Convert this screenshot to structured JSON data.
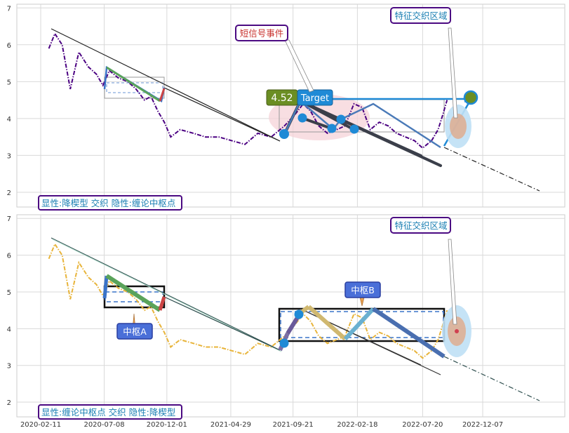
{
  "chart_data": [
    {
      "type": "line",
      "panel": "top",
      "ylim": [
        1.6,
        7.1
      ],
      "y_ticks": [
        "2",
        "3",
        "4",
        "5",
        "6",
        "7"
      ],
      "grid": true,
      "series": [
        {
          "name": "",
          "color": "#4b0082",
          "style": "dashdot",
          "x": [
            "2020-03-01",
            "2020-03-15",
            "2020-04-01",
            "2020-04-20",
            "2020-05-10",
            "2020-06-01",
            "2020-06-20",
            "2020-07-05",
            "2020-07-20",
            "2020-08-10",
            "2020-09-01",
            "2020-09-20",
            "2020-10-10",
            "2020-10-25",
            "2020-11-10",
            "2020-11-25",
            "2020-12-10",
            "2021-01-01",
            "2021-02-01",
            "2021-03-01",
            "2021-04-01",
            "2021-05-01",
            "2021-06-01",
            "2021-07-01",
            "2021-08-01",
            "2021-09-01",
            "2021-09-25",
            "2021-10-15",
            "2021-11-01",
            "2021-11-20",
            "2021-12-10",
            "2022-01-01",
            "2022-01-20",
            "2022-02-10",
            "2022-03-01",
            "2022-03-20",
            "2022-04-10",
            "2022-05-01",
            "2022-05-20",
            "2022-06-10",
            "2022-07-01",
            "2022-07-20",
            "2022-08-10",
            "2022-08-25",
            "2022-09-05",
            "2022-09-15"
          ],
          "y": [
            5.9,
            6.3,
            6.0,
            4.8,
            5.8,
            5.4,
            5.2,
            4.9,
            5.3,
            5.1,
            5.0,
            4.8,
            4.5,
            4.6,
            4.2,
            3.9,
            3.5,
            3.7,
            3.6,
            3.5,
            3.5,
            3.4,
            3.3,
            3.6,
            3.5,
            3.8,
            4.1,
            4.4,
            4.2,
            3.8,
            3.6,
            3.7,
            3.8,
            4.4,
            4.3,
            3.7,
            3.9,
            3.8,
            3.6,
            3.5,
            3.4,
            3.2,
            3.4,
            3.7,
            4.1,
            4.5
          ]
        }
      ],
      "annotations": {
        "short_signal_label": "短信号事件",
        "region_label": "特征交织区域",
        "target_value": "4.52",
        "target_label": "Target",
        "legend_text": "显性:降楔型 交织 隐性:缠论中枢点"
      },
      "wedge_lines": [
        {
          "from": [
            "2020-04-01",
            6.45
          ],
          "to": [
            "2021-09-12",
            3.3
          ]
        },
        {
          "from": [
            "2020-12-05",
            4.85
          ],
          "to": [
            "2021-09-12",
            3.3
          ]
        },
        {
          "from": [
            "2021-09-12",
            3.3
          ],
          "to": [
            "2023-05-01",
            1.9
          ],
          "style": "dashdot"
        }
      ],
      "target_points": [
        {
          "x": "2021-09-15",
          "y": 3.5
        },
        {
          "x": "2021-10-25",
          "y": 3.95
        },
        {
          "x": "2021-12-15",
          "y": 3.7
        },
        {
          "x": "2022-01-10",
          "y": 3.9
        },
        {
          "x": "2022-02-01",
          "y": 3.65
        }
      ],
      "target_point": {
        "x": "2022-10-05",
        "y": 4.52
      }
    },
    {
      "type": "line",
      "panel": "bottom",
      "ylim": [
        1.6,
        7.1
      ],
      "y_ticks": [
        "2",
        "3",
        "4",
        "5",
        "6",
        "7"
      ],
      "grid": true,
      "x_ticks": [
        "2020-02-11",
        "2020-07-08",
        "2020-12-01",
        "2021-04-29",
        "2021-09-21",
        "2022-02-18",
        "2022-07-20",
        "2022-12-07"
      ],
      "series": [
        {
          "name": "",
          "color": "#e8b43a",
          "style": "dashdot",
          "x": [
            "2020-03-01",
            "2020-03-15",
            "2020-04-01",
            "2020-04-20",
            "2020-05-10",
            "2020-06-01",
            "2020-06-20",
            "2020-07-05",
            "2020-07-20",
            "2020-08-10",
            "2020-09-01",
            "2020-09-20",
            "2020-10-10",
            "2020-10-25",
            "2020-11-10",
            "2020-11-25",
            "2020-12-10",
            "2021-01-01",
            "2021-02-01",
            "2021-03-01",
            "2021-04-01",
            "2021-05-01",
            "2021-06-01",
            "2021-07-01",
            "2021-08-01",
            "2021-09-01",
            "2021-09-25",
            "2021-10-15",
            "2021-11-01",
            "2021-11-20",
            "2021-12-10",
            "2022-01-01",
            "2022-01-20",
            "2022-02-10",
            "2022-03-01",
            "2022-03-20",
            "2022-04-10",
            "2022-05-01",
            "2022-05-20",
            "2022-06-10",
            "2022-07-01",
            "2022-07-20",
            "2022-08-10",
            "2022-08-25",
            "2022-09-05",
            "2022-09-15"
          ],
          "y": [
            5.9,
            6.3,
            6.0,
            4.8,
            5.8,
            5.4,
            5.2,
            4.9,
            5.3,
            5.1,
            5.0,
            4.8,
            4.5,
            4.6,
            4.2,
            3.9,
            3.5,
            3.7,
            3.6,
            3.5,
            3.5,
            3.4,
            3.3,
            3.6,
            3.5,
            3.8,
            4.1,
            4.4,
            4.2,
            3.8,
            3.6,
            3.7,
            3.8,
            4.4,
            4.3,
            3.7,
            3.9,
            3.8,
            3.6,
            3.5,
            3.4,
            3.2,
            3.4,
            3.7,
            4.1,
            4.5
          ]
        }
      ],
      "annotations": {
        "center_a_label": "中枢A",
        "center_b_label": "中枢B",
        "region_label": "特征交织区域",
        "legend_text": "显性:缠论中枢点 交织 隐性:降楔型"
      },
      "pivot_boxes": [
        {
          "x_start": "2020-07-15",
          "x_end": "2020-12-01",
          "y_low": 4.5,
          "y_high": 5.1
        },
        {
          "x_start": "2021-09-12",
          "x_end": "2022-08-05",
          "y_low": 3.6,
          "y_high": 4.45
        }
      ]
    }
  ],
  "colors": {
    "accent_blue": "#1f8ad6",
    "label_border": "#4b0a82",
    "label_text": "#1a7fb3",
    "red_label_text": "#c8322e",
    "target_green": "#6b8e23",
    "wedge_fill": "#f6d3d8"
  }
}
